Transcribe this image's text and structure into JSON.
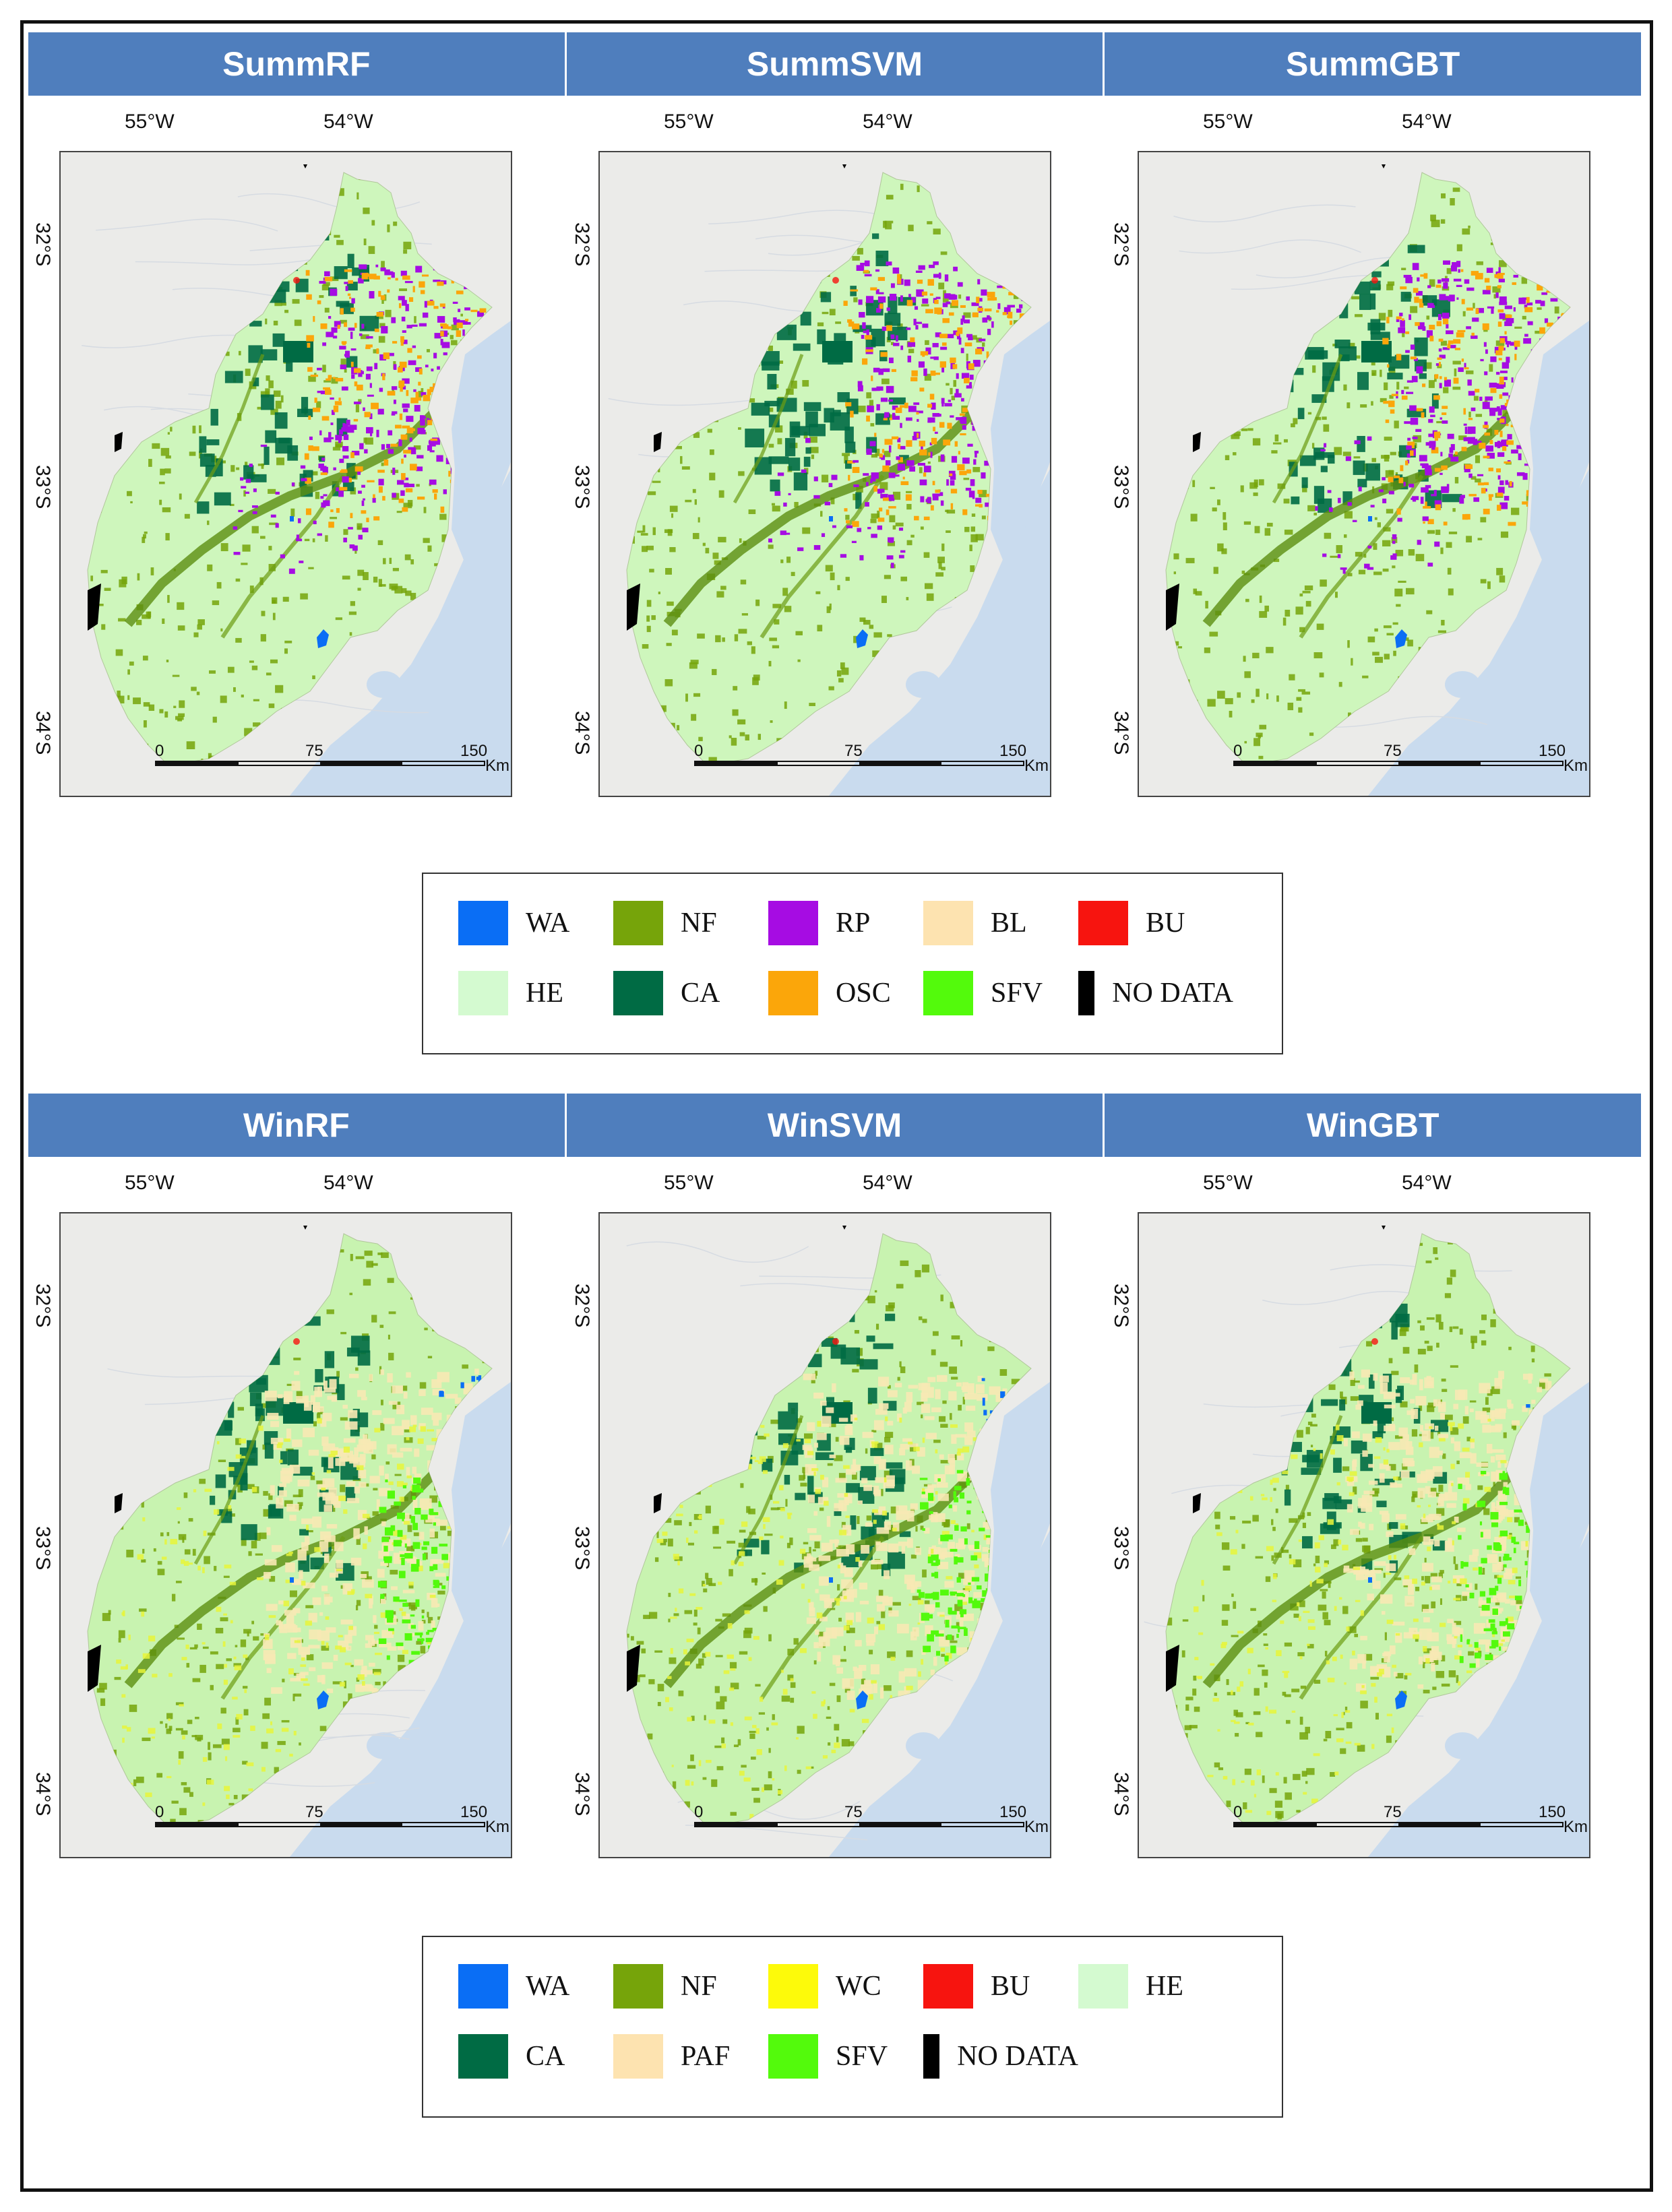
{
  "summer": {
    "panels": [
      {
        "title": "SummRF",
        "variant": "summer"
      },
      {
        "title": "SummSVM",
        "variant": "summer"
      },
      {
        "title": "SummGBT",
        "variant": "summer"
      }
    ],
    "legend": [
      {
        "code": "WA",
        "color": "#0a6ef5"
      },
      {
        "code": "NF",
        "color": "#76a40a"
      },
      {
        "code": "RP",
        "color": "#a60ce3"
      },
      {
        "code": "BL",
        "color": "#fde3b0"
      },
      {
        "code": "BU",
        "color": "#f7140f"
      },
      {
        "code": "HE",
        "color": "#d4fad0"
      },
      {
        "code": "CA",
        "color": "#006b44"
      },
      {
        "code": "OSC",
        "color": "#fba60a"
      },
      {
        "code": "SFV",
        "color": "#53fa0c"
      },
      {
        "code": "NO DATA",
        "color": "#000000"
      }
    ]
  },
  "winter": {
    "panels": [
      {
        "title": "WinRF",
        "variant": "winter"
      },
      {
        "title": "WinSVM",
        "variant": "winter"
      },
      {
        "title": "WinGBT",
        "variant": "winter"
      }
    ],
    "legend": [
      {
        "code": "WA",
        "color": "#0a6ef5"
      },
      {
        "code": "NF",
        "color": "#76a40a"
      },
      {
        "code": "WC",
        "color": "#fdfa0a"
      },
      {
        "code": "BU",
        "color": "#f7140f"
      },
      {
        "code": "HE",
        "color": "#d4fad0"
      },
      {
        "code": "CA",
        "color": "#006b44"
      },
      {
        "code": "PAF",
        "color": "#fde3b0"
      },
      {
        "code": "SFV",
        "color": "#53fa0c"
      },
      {
        "code": "NO DATA",
        "color": "#000000"
      }
    ]
  },
  "axes": {
    "lon_labels": [
      "55°W",
      "54°W"
    ],
    "lat_labels": [
      "32°S",
      "33°S",
      "34°S"
    ]
  },
  "scale_bar": {
    "ticks": [
      "0",
      "75",
      "150"
    ],
    "unit": "Km"
  }
}
